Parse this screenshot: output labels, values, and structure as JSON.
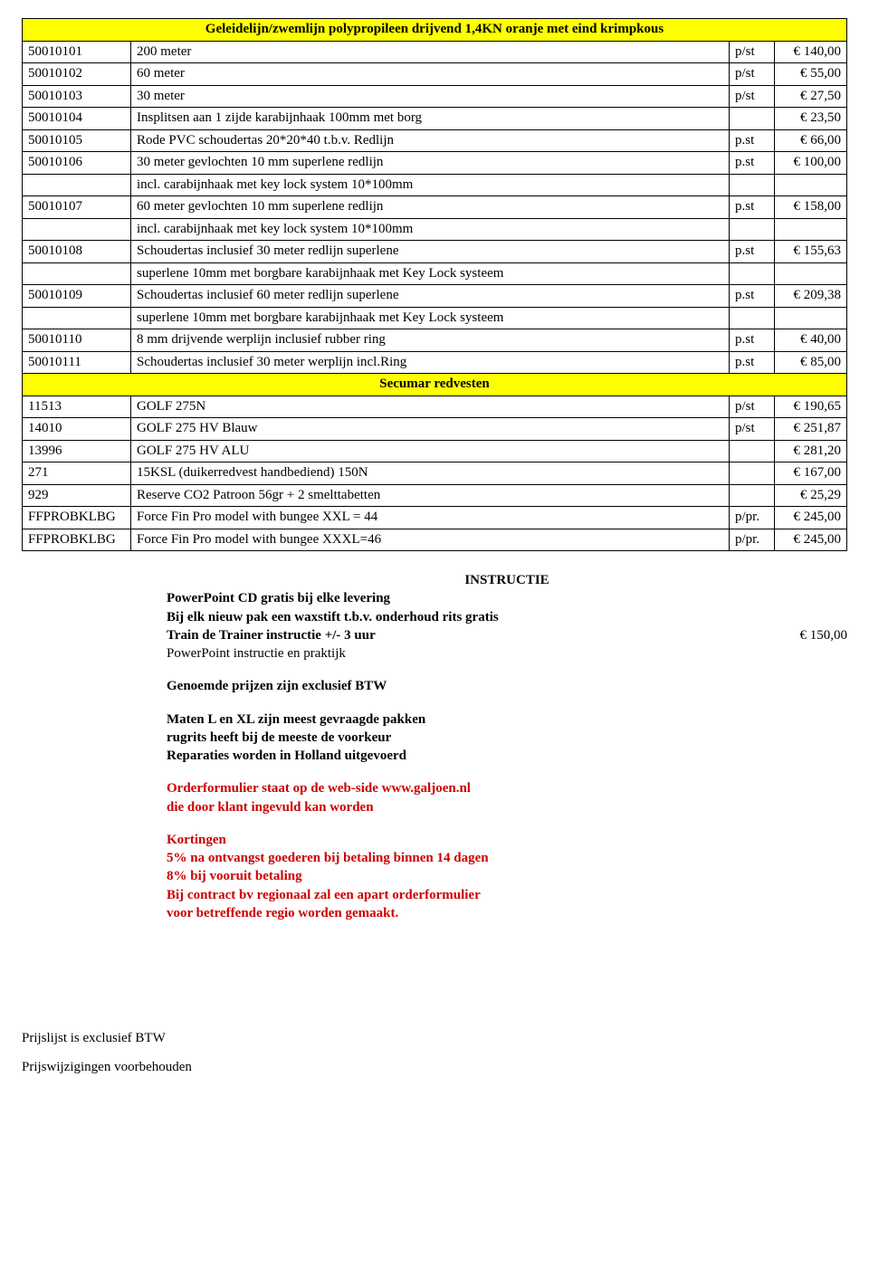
{
  "section1": {
    "title": "Geleidelijn/zwemlijn polypropileen drijvend 1,4KN oranje met eind krimpkous",
    "rows": [
      {
        "code": "50010101",
        "desc": "200 meter",
        "unit": "p/st",
        "price": "€ 140,00"
      },
      {
        "code": "50010102",
        "desc": "60 meter",
        "unit": "p/st",
        "price": "€  55,00"
      },
      {
        "code": "50010103",
        "desc": "30 meter",
        "unit": "p/st",
        "price": "€  27,50"
      },
      {
        "code": "50010104",
        "desc": "Insplitsen aan 1 zijde karabijnhaak 100mm met borg",
        "unit": "",
        "price": "€  23,50"
      },
      {
        "code": "50010105",
        "desc": "Rode PVC schoudertas 20*20*40 t.b.v. Redlijn",
        "unit": "p.st",
        "price": "€  66,00"
      },
      {
        "code": "50010106",
        "desc": "30 meter gevlochten 10 mm superlene redlijn",
        "unit": "p.st",
        "price": "€ 100,00",
        "sub": "incl. carabijnhaak met key lock system 10*100mm"
      },
      {
        "code": "50010107",
        "desc": "60 meter gevlochten 10 mm superlene redlijn",
        "unit": "p.st",
        "price": "€ 158,00",
        "sub": "incl. carabijnhaak met key lock system 10*100mm"
      },
      {
        "code": "50010108",
        "desc": "Schoudertas inclusief 30 meter redlijn superlene",
        "unit": "p.st",
        "price": "€ 155,63",
        "sub": "superlene 10mm met borgbare karabijnhaak met Key Lock systeem"
      },
      {
        "code": "50010109",
        "desc": "Schoudertas inclusief 60 meter redlijn superlene",
        "unit": "p.st",
        "price": "€ 209,38",
        "sub": "superlene 10mm met borgbare karabijnhaak met Key Lock systeem"
      },
      {
        "code": "50010110",
        "desc": "8 mm drijvende werplijn inclusief rubber ring",
        "unit": "p.st",
        "price": "€  40,00"
      },
      {
        "code": "50010111",
        "desc": "Schoudertas inclusief 30 meter werplijn incl.Ring",
        "unit": "p.st",
        "price": "€  85,00"
      }
    ]
  },
  "section2": {
    "title": "Secumar redvesten",
    "rows": [
      {
        "code": "11513",
        "desc": "GOLF 275N",
        "unit": "p/st",
        "price": "€ 190,65"
      },
      {
        "code": "14010",
        "desc": "GOLF 275 HV Blauw",
        "unit": "p/st",
        "price": "€ 251,87"
      },
      {
        "code": "13996",
        "desc": "GOLF 275 HV ALU",
        "unit": "",
        "price": "€ 281,20"
      },
      {
        "code": "271",
        "desc": "15KSL   (duikerredvest handbediend) 150N",
        "unit": "",
        "price": "€ 167,00"
      },
      {
        "code": "929",
        "desc": "Reserve CO2 Patroon 56gr + 2 smelttabetten",
        "unit": "",
        "price": "€  25,29"
      },
      {
        "code": "FFPROBKLBG",
        "desc": "Force Fin Pro model with bungee           XXL = 44",
        "unit": "p/pr.",
        "price": "€ 245,00"
      },
      {
        "code": "FFPROBKLBG",
        "desc": "Force Fin Pro model with bungee           XXXL=46",
        "unit": "p/pr.",
        "price": "€ 245,00"
      }
    ]
  },
  "info": {
    "instructie_heading": "INSTRUCTIE",
    "line1": "PowerPoint CD gratis bij elke levering",
    "line2": "Bij elk nieuw pak een waxstift t.b.v. onderhoud rits gratis",
    "train_label": "Train de Trainer instructie +/- 3 uur",
    "train_price": "€ 150,00",
    "line4": "PowerPoint instructie en praktijk",
    "btw": "Genoemde prijzen zijn exclusief BTW",
    "maten1": "Maten L en XL zijn meest gevraagde pakken",
    "maten2": "rugrits heeft bij de meeste de voorkeur",
    "maten3": "Reparaties worden in Holland uitgevoerd",
    "order1": "Orderformulier staat op de web-side www.galjoen.nl",
    "order2": "die door klant ingevuld kan worden",
    "kort_h": "Kortingen",
    "kort1": "5% na ontvangst goederen bij betaling binnen 14 dagen",
    "kort2": "8% bij vooruit betaling",
    "kort3": "Bij contract bv regionaal zal een apart orderformulier",
    "kort4": "voor betreffende regio worden gemaakt."
  },
  "footer": {
    "l1": "Prijslijst is exclusief BTW",
    "l2": "Prijswijzigingen voorbehouden"
  }
}
